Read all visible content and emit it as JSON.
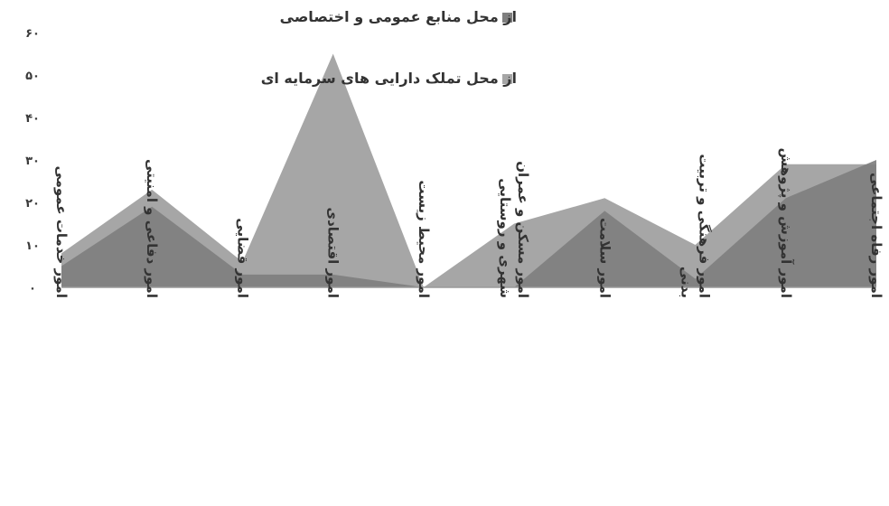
{
  "chart_data": {
    "type": "area",
    "categories": [
      [
        "امور خدمات عمومی"
      ],
      [
        "امور دفاعی و امنیتی"
      ],
      [
        "امور قضایی"
      ],
      [
        "امور اقتصادی"
      ],
      [
        "امور محیط زیست"
      ],
      [
        "امور مسکن و عمران",
        "شهری و روستایی"
      ],
      [
        "امور سلامت"
      ],
      [
        "امور فرهنگی و تربیت",
        "بدنی"
      ],
      [
        "امور آموزش و پژوهش"
      ],
      [
        "امور رفاه اجتماعی"
      ]
    ],
    "series": [
      {
        "name": "از محل منابع عمومی و اختصاصی",
        "color": "#7f7f7f",
        "values": [
          5,
          19,
          3,
          3,
          0,
          0,
          18,
          2,
          21,
          30
        ]
      },
      {
        "name": "از محل تملک دارایی های سرمایه ای",
        "color": "#a6a6a6",
        "values": [
          8,
          23,
          6,
          55,
          0,
          15,
          21,
          10,
          29,
          29
        ]
      }
    ],
    "ylim": [
      0,
      60
    ],
    "yticks": [
      0,
      10,
      20,
      30,
      40,
      50,
      60
    ],
    "ytick_labels": [
      "۰",
      "۱۰",
      "۲۰",
      "۳۰",
      "۴۰",
      "۵۰",
      "۶۰"
    ],
    "legend_position": "top-right",
    "grid": false
  }
}
